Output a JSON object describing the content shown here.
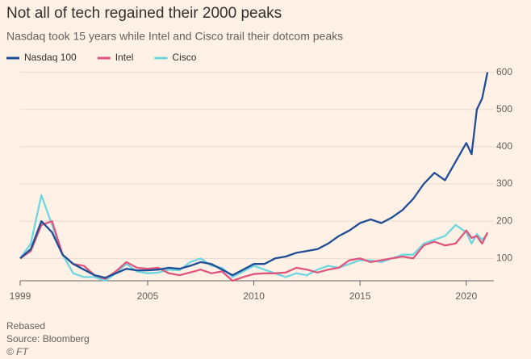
{
  "chart_data": {
    "type": "line",
    "title": "Not all of tech regained their 2000 peaks",
    "subtitle": "Nasdaq took 15 years while Intel and Cisco trail their dotcom peaks",
    "notes": [
      "Rebased",
      "Source: Bloomberg",
      "© FT"
    ],
    "x": [
      1999,
      1999.5,
      2000,
      2000.5,
      2001,
      2001.5,
      2002,
      2002.5,
      2003,
      2003.5,
      2004,
      2004.5,
      2005,
      2005.5,
      2006,
      2006.5,
      2007,
      2007.5,
      2008,
      2008.5,
      2009,
      2009.5,
      2010,
      2010.5,
      2011,
      2011.5,
      2012,
      2012.5,
      2013,
      2013.5,
      2014,
      2014.5,
      2015,
      2015.5,
      2016,
      2016.5,
      2017,
      2017.5,
      2018,
      2018.5,
      2019,
      2019.5,
      2020,
      2020.25,
      2020.5,
      2020.75,
      2021
    ],
    "series": [
      {
        "name": "Nasdaq 100",
        "color": "#1f4e96",
        "values": [
          100,
          125,
          200,
          170,
          110,
          85,
          70,
          55,
          48,
          60,
          72,
          68,
          68,
          70,
          75,
          72,
          80,
          90,
          85,
          70,
          55,
          70,
          85,
          85,
          100,
          105,
          115,
          120,
          125,
          140,
          160,
          175,
          195,
          205,
          195,
          210,
          230,
          260,
          300,
          330,
          310,
          360,
          410,
          380,
          500,
          530,
          600
        ]
      },
      {
        "name": "Intel",
        "color": "#e0557e",
        "values": [
          100,
          120,
          190,
          200,
          110,
          85,
          80,
          55,
          45,
          65,
          90,
          75,
          72,
          75,
          60,
          55,
          62,
          70,
          60,
          65,
          40,
          50,
          58,
          60,
          60,
          62,
          75,
          70,
          62,
          70,
          75,
          95,
          100,
          90,
          95,
          100,
          105,
          100,
          135,
          145,
          135,
          140,
          175,
          155,
          160,
          140,
          170
        ]
      },
      {
        "name": "Cisco",
        "color": "#6fd6e0",
        "values": [
          100,
          140,
          270,
          190,
          110,
          60,
          50,
          50,
          40,
          60,
          85,
          65,
          60,
          62,
          70,
          68,
          90,
          100,
          80,
          75,
          50,
          65,
          80,
          70,
          60,
          50,
          60,
          55,
          70,
          80,
          75,
          85,
          95,
          95,
          90,
          100,
          110,
          110,
          140,
          150,
          160,
          190,
          170,
          140,
          165,
          150,
          165
        ]
      }
    ],
    "xlim": [
      1999,
      2021.3
    ],
    "xticks": [
      1999,
      2005,
      2010,
      2015,
      2020
    ],
    "ylim": [
      40,
      610
    ],
    "yticks": [
      100,
      200,
      300,
      400,
      500,
      600
    ],
    "grid": true
  }
}
